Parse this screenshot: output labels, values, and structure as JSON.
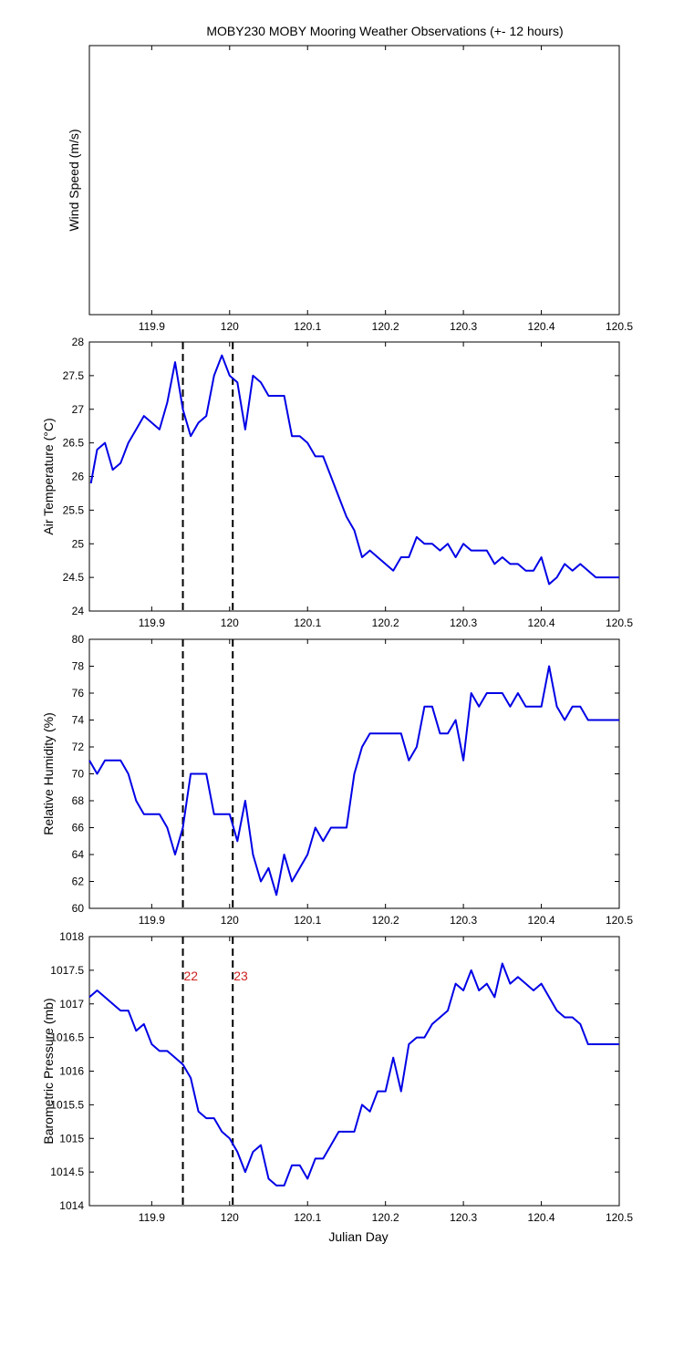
{
  "figure": {
    "title": "MOBY230 MOBY Mooring Weather Observations (+- 12 hours)",
    "xlabel": "Julian Day",
    "xlim": [
      119.82,
      120.5
    ],
    "xticks": [
      119.9,
      120,
      120.1,
      120.2,
      120.3,
      120.4,
      120.5
    ],
    "xtick_labels": [
      "119.9",
      "120",
      "120.1",
      "120.2",
      "120.3",
      "120.4",
      "120.5"
    ],
    "vlines": [
      119.94,
      120.004
    ],
    "vline_labels": [
      "22",
      "23"
    ],
    "colors": {
      "line": "#0000e6",
      "vline": "#000000",
      "marker_text": "#cc2222",
      "axes": "#000000"
    }
  },
  "chart_data": [
    {
      "type": "line",
      "ylabel": "Wind Speed (m/s)",
      "xlim": [
        119.82,
        120.5
      ],
      "ylim": null,
      "yticks": [],
      "ytick_labels": [],
      "series": [],
      "show_vlines": false
    },
    {
      "type": "line",
      "ylabel": "Air Temperature (°C)",
      "xlim": [
        119.82,
        120.5
      ],
      "ylim": [
        24,
        28
      ],
      "yticks": [
        24,
        24.5,
        25,
        25.5,
        26,
        26.5,
        27,
        27.5,
        28
      ],
      "ytick_labels": [
        "24",
        "24.5",
        "25",
        "25.5",
        "26",
        "26.5",
        "27",
        "27.5",
        "28"
      ],
      "show_vlines": true,
      "series": [
        {
          "x": [
            119.822,
            119.83,
            119.84,
            119.85,
            119.86,
            119.87,
            119.88,
            119.89,
            119.9,
            119.91,
            119.92,
            119.93,
            119.94,
            119.95,
            119.96,
            119.97,
            119.98,
            119.99,
            120.0,
            120.01,
            120.02,
            120.03,
            120.04,
            120.05,
            120.06,
            120.07,
            120.08,
            120.09,
            120.1,
            120.11,
            120.12,
            120.13,
            120.14,
            120.15,
            120.16,
            120.17,
            120.18,
            120.19,
            120.2,
            120.21,
            120.22,
            120.23,
            120.24,
            120.25,
            120.26,
            120.27,
            120.28,
            120.29,
            120.3,
            120.31,
            120.32,
            120.33,
            120.34,
            120.35,
            120.36,
            120.37,
            120.38,
            120.39,
            120.4,
            120.41,
            120.42,
            120.43,
            120.44,
            120.45,
            120.46,
            120.47,
            120.48,
            120.49,
            120.5
          ],
          "y": [
            25.9,
            26.4,
            26.5,
            26.1,
            26.2,
            26.5,
            26.7,
            26.9,
            26.8,
            26.7,
            27.1,
            27.7,
            27.0,
            26.6,
            26.8,
            26.9,
            27.5,
            27.8,
            27.5,
            27.4,
            26.7,
            27.5,
            27.4,
            27.2,
            27.2,
            27.2,
            26.6,
            26.6,
            26.5,
            26.3,
            26.3,
            26.0,
            25.7,
            25.4,
            25.2,
            24.8,
            24.9,
            24.8,
            24.7,
            24.6,
            24.8,
            24.8,
            25.1,
            25.0,
            25.0,
            24.9,
            25.0,
            24.8,
            25.0,
            24.9,
            24.9,
            24.9,
            24.7,
            24.8,
            24.7,
            24.7,
            24.6,
            24.6,
            24.8,
            24.4,
            24.5,
            24.7,
            24.6,
            24.7,
            24.6,
            24.5,
            24.5,
            24.5,
            24.5
          ]
        }
      ]
    },
    {
      "type": "line",
      "ylabel": "Relative Humidity (%)",
      "xlim": [
        119.82,
        120.5
      ],
      "ylim": [
        60,
        80
      ],
      "yticks": [
        60,
        62,
        64,
        66,
        68,
        70,
        72,
        74,
        76,
        78,
        80
      ],
      "ytick_labels": [
        "60",
        "62",
        "64",
        "66",
        "68",
        "70",
        "72",
        "74",
        "76",
        "78",
        "80"
      ],
      "show_vlines": true,
      "series": [
        {
          "x": [
            119.82,
            119.83,
            119.84,
            119.85,
            119.86,
            119.87,
            119.88,
            119.89,
            119.9,
            119.91,
            119.92,
            119.93,
            119.94,
            119.95,
            119.96,
            119.97,
            119.98,
            119.99,
            120.0,
            120.01,
            120.02,
            120.03,
            120.04,
            120.05,
            120.06,
            120.07,
            120.08,
            120.09,
            120.1,
            120.11,
            120.12,
            120.13,
            120.14,
            120.15,
            120.16,
            120.17,
            120.18,
            120.19,
            120.2,
            120.21,
            120.22,
            120.23,
            120.24,
            120.25,
            120.26,
            120.27,
            120.28,
            120.29,
            120.3,
            120.31,
            120.32,
            120.33,
            120.34,
            120.35,
            120.36,
            120.37,
            120.38,
            120.39,
            120.4,
            120.41,
            120.42,
            120.43,
            120.44,
            120.45,
            120.46,
            120.47,
            120.48,
            120.49,
            120.5
          ],
          "y": [
            71,
            70,
            71,
            71,
            71,
            70,
            68,
            67,
            67,
            67,
            66,
            64,
            66,
            70,
            70,
            70,
            67,
            67,
            67,
            65,
            68,
            64,
            62,
            63,
            61,
            64,
            62,
            63,
            64,
            66,
            65,
            66,
            66,
            66,
            70,
            72,
            73,
            73,
            73,
            73,
            73,
            71,
            72,
            75,
            75,
            73,
            73,
            74,
            71,
            76,
            75,
            76,
            76,
            76,
            75,
            76,
            75,
            75,
            75,
            78,
            75,
            74,
            75,
            75,
            74,
            74,
            74,
            74,
            74
          ]
        }
      ]
    },
    {
      "type": "line",
      "ylabel": "Barometric Pressure (mb)",
      "xlim": [
        119.82,
        120.5
      ],
      "ylim": [
        1014,
        1018
      ],
      "yticks": [
        1014,
        1014.5,
        1015,
        1015.5,
        1016,
        1016.5,
        1017,
        1017.5,
        1018
      ],
      "ytick_labels": [
        "1014",
        "1014.5",
        "1015",
        "1015.5",
        "1016",
        "1016.5",
        "1017",
        "1017.5",
        "1018"
      ],
      "show_vlines": true,
      "show_vline_labels": true,
      "series": [
        {
          "x": [
            119.82,
            119.83,
            119.84,
            119.85,
            119.86,
            119.87,
            119.88,
            119.89,
            119.9,
            119.91,
            119.92,
            119.93,
            119.94,
            119.95,
            119.96,
            119.97,
            119.98,
            119.99,
            120.0,
            120.01,
            120.02,
            120.03,
            120.04,
            120.05,
            120.06,
            120.07,
            120.08,
            120.09,
            120.1,
            120.11,
            120.12,
            120.13,
            120.14,
            120.15,
            120.16,
            120.17,
            120.18,
            120.19,
            120.2,
            120.21,
            120.22,
            120.23,
            120.24,
            120.25,
            120.26,
            120.27,
            120.28,
            120.29,
            120.3,
            120.31,
            120.32,
            120.33,
            120.34,
            120.35,
            120.36,
            120.37,
            120.38,
            120.39,
            120.4,
            120.41,
            120.42,
            120.43,
            120.44,
            120.45,
            120.46,
            120.47,
            120.48,
            120.49,
            120.5
          ],
          "y": [
            1017.1,
            1017.2,
            1017.1,
            1017.0,
            1016.9,
            1016.9,
            1016.6,
            1016.7,
            1016.4,
            1016.3,
            1016.3,
            1016.2,
            1016.1,
            1015.9,
            1015.4,
            1015.3,
            1015.3,
            1015.1,
            1015.0,
            1014.8,
            1014.5,
            1014.8,
            1014.9,
            1014.4,
            1014.3,
            1014.3,
            1014.6,
            1014.6,
            1014.4,
            1014.7,
            1014.7,
            1014.9,
            1015.1,
            1015.1,
            1015.1,
            1015.5,
            1015.4,
            1015.7,
            1015.7,
            1016.2,
            1015.7,
            1016.4,
            1016.5,
            1016.5,
            1016.7,
            1016.8,
            1016.9,
            1017.3,
            1017.2,
            1017.5,
            1017.2,
            1017.3,
            1017.1,
            1017.6,
            1017.3,
            1017.4,
            1017.3,
            1017.2,
            1017.3,
            1017.1,
            1016.9,
            1016.8,
            1016.8,
            1016.7,
            1016.4,
            1016.4,
            1016.4,
            1016.4,
            1016.4
          ]
        }
      ]
    }
  ]
}
